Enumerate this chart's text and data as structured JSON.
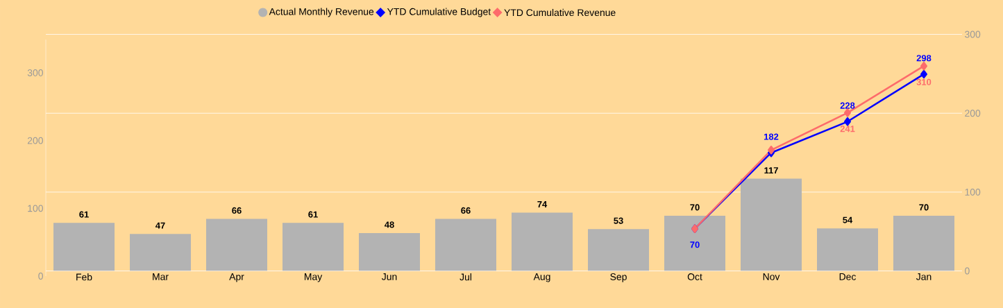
{
  "chart_data": {
    "type": "bar",
    "categories": [
      "Feb",
      "Mar",
      "Apr",
      "May",
      "Jun",
      "Jul",
      "Aug",
      "Sep",
      "Oct",
      "Nov",
      "Dec",
      "Jan"
    ],
    "series": [
      {
        "name": "Actual Monthly Revenue",
        "axis": "y2",
        "color": "#b3b3b3",
        "values": [
          61,
          47,
          66,
          61,
          48,
          66,
          74,
          53,
          70,
          117,
          54,
          70
        ],
        "value_labels": [
          "61",
          "47",
          "66",
          "61",
          "48",
          "66",
          "74",
          "53",
          "70",
          "117",
          "54",
          "70"
        ]
      },
      {
        "name": "YTD Cumulative Budget",
        "type": "line",
        "color": "#0000ff",
        "values": [
          null,
          null,
          null,
          null,
          null,
          null,
          null,
          null,
          70,
          182,
          228,
          298
        ],
        "value_labels": [
          null,
          null,
          null,
          null,
          null,
          null,
          null,
          null,
          "70",
          "182",
          "228",
          "298"
        ]
      },
      {
        "name": "YTD Cumulative Revenue",
        "type": "line",
        "color": "#fd6b6b",
        "values": [
          null,
          null,
          null,
          null,
          null,
          null,
          null,
          null,
          70,
          186,
          241,
          310
        ],
        "value_labels": [
          null,
          null,
          null,
          null,
          null,
          null,
          null,
          null,
          null,
          null,
          "241",
          "310"
        ]
      }
    ],
    "ylim": [
      0,
      349
    ],
    "yticks": [
      0,
      100,
      200,
      300
    ],
    "y2lim": [
      0,
      300
    ],
    "y2ticks": [
      0,
      100,
      200,
      300
    ],
    "grid": true,
    "legend": "top",
    "marker": "diamond"
  }
}
